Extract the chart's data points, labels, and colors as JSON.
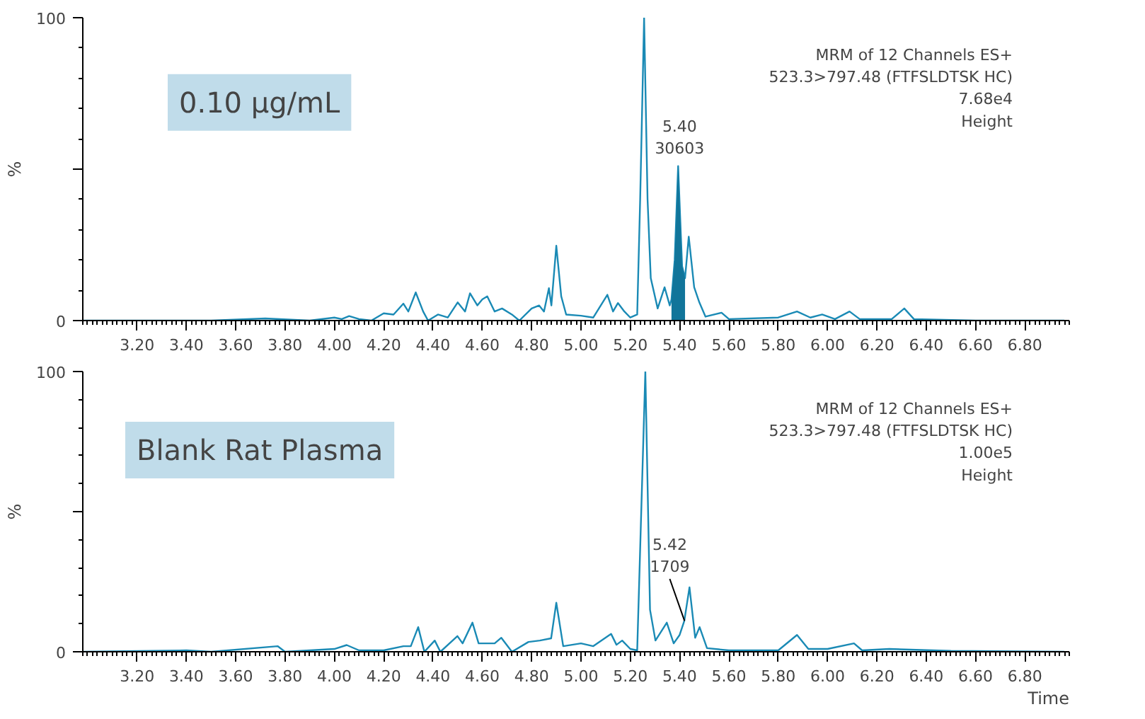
{
  "chart_data": [
    {
      "type": "line",
      "ylabel": "%",
      "xlim": [
        2.98,
        6.98
      ],
      "ylim": [
        0,
        100
      ],
      "xticks": [
        {
          "value": 3.2,
          "label": "3.20"
        },
        {
          "value": 3.4,
          "label": "3.40"
        },
        {
          "value": 3.6,
          "label": "3.60"
        },
        {
          "value": 3.8,
          "label": "3.80"
        },
        {
          "value": 4.0,
          "label": "4.00"
        },
        {
          "value": 4.2,
          "label": "4.20"
        },
        {
          "value": 4.4,
          "label": "4.40"
        },
        {
          "value": 4.6,
          "label": "4.60"
        },
        {
          "value": 4.8,
          "label": "4.80"
        },
        {
          "value": 5.0,
          "label": "5.00"
        },
        {
          "value": 5.2,
          "label": "5.20"
        },
        {
          "value": 5.4,
          "label": "5.40"
        },
        {
          "value": 5.6,
          "label": "5.60"
        },
        {
          "value": 5.8,
          "label": "5.80"
        },
        {
          "value": 6.0,
          "label": "6.00"
        },
        {
          "value": 6.2,
          "label": "6.20"
        },
        {
          "value": 6.4,
          "label": "6.40"
        },
        {
          "value": 6.6,
          "label": "6.60"
        },
        {
          "value": 6.8,
          "label": "6.80"
        }
      ],
      "yticks": [
        0,
        {
          "value": 50,
          "label": null
        },
        100
      ],
      "grid": false,
      "marker": "none",
      "line_style": "solid",
      "annotations": [
        "0.10 µg/mL",
        "MRM of 12 Channels ES+\n523.3>797.48 (FTFSLDTSK HC)\n7.68e4\nHeight",
        {
          "text": "5.40\n30603",
          "x": 5.4,
          "y": 51
        }
      ],
      "series": [
        {
          "color": "#1a8ab5",
          "x": [
            2.98,
            3.5,
            3.72,
            3.9,
            4.0,
            4.03,
            4.06,
            4.1,
            4.15,
            4.2,
            4.24,
            4.28,
            4.3,
            4.33,
            4.36,
            4.38,
            4.42,
            4.46,
            4.5,
            4.53,
            4.55,
            4.58,
            4.6,
            4.62,
            4.65,
            4.68,
            4.72,
            4.75,
            4.8,
            4.83,
            4.85,
            4.87,
            4.88,
            4.9,
            4.92,
            4.94,
            5.0,
            5.05,
            5.107,
            5.13,
            5.15,
            5.176,
            5.2,
            5.228,
            5.24,
            5.256,
            5.27,
            5.283,
            5.311,
            5.339,
            5.36,
            5.367,
            5.38,
            5.394,
            5.41,
            5.422,
            5.437,
            5.459,
            5.48,
            5.505,
            5.57,
            5.6,
            5.8,
            5.876,
            5.93,
            5.978,
            6.03,
            6.089,
            6.13,
            6.26,
            6.311,
            6.35,
            6.6,
            6.96
          ],
          "values": [
            0,
            0,
            0.7,
            0,
            1,
            0.5,
            1.5,
            0.5,
            0,
            2.4,
            2,
            5.6,
            3,
            9.3,
            3,
            0,
            2,
            1,
            6,
            3,
            9,
            5,
            7,
            8,
            3,
            4,
            2,
            0,
            4,
            5,
            3,
            10.7,
            5,
            24.7,
            8,
            2,
            1.6,
            1,
            8.5,
            3,
            5.8,
            3,
            1,
            2,
            40,
            100,
            40,
            14,
            4,
            11,
            5,
            7,
            20,
            51,
            18,
            14,
            27.7,
            11,
            6,
            1.3,
            2.6,
            0.5,
            1,
            3,
            1,
            2,
            0.5,
            3,
            0.5,
            0.5,
            4,
            0.5,
            0,
            0
          ]
        },
        {
          "type": "area",
          "color": "#11759a",
          "x": [
            5.367,
            5.38,
            5.394,
            5.41,
            5.422
          ],
          "values": [
            7,
            20,
            51,
            18,
            14
          ]
        }
      ]
    },
    {
      "type": "line",
      "xlabel": "Time",
      "ylabel": "%",
      "xlim": [
        2.98,
        6.98
      ],
      "ylim": [
        0,
        100
      ],
      "xticks": [
        {
          "value": 3.2,
          "label": "3.20"
        },
        {
          "value": 3.4,
          "label": "3.40"
        },
        {
          "value": 3.6,
          "label": "3.60"
        },
        {
          "value": 3.8,
          "label": "3.80"
        },
        {
          "value": 4.0,
          "label": "4.00"
        },
        {
          "value": 4.2,
          "label": "4.20"
        },
        {
          "value": 4.4,
          "label": "4.40"
        },
        {
          "value": 4.6,
          "label": "4.60"
        },
        {
          "value": 4.8,
          "label": "4.80"
        },
        {
          "value": 5.0,
          "label": "5.00"
        },
        {
          "value": 5.2,
          "label": "5.20"
        },
        {
          "value": 5.4,
          "label": "5.40"
        },
        {
          "value": 5.6,
          "label": "5.60"
        },
        {
          "value": 5.8,
          "label": "5.80"
        },
        {
          "value": 6.0,
          "label": "6.00"
        },
        {
          "value": 6.2,
          "label": "6.20"
        },
        {
          "value": 6.4,
          "label": "6.40"
        },
        {
          "value": 6.6,
          "label": "6.60"
        },
        {
          "value": 6.8,
          "label": "6.80"
        }
      ],
      "yticks": [
        0,
        {
          "value": 50,
          "label": null
        },
        100
      ],
      "grid": false,
      "marker": "none",
      "line_style": "solid",
      "annotations": [
        "Blank Rat Plasma",
        "MRM of 12 Channels ES+\n523.3>797.48 (FTFSLDTSK HC)\n1.00e5\nHeight",
        {
          "text": "5.42\n1709",
          "x": 5.42,
          "y": 11
        }
      ],
      "series": [
        {
          "color": "#1a8ab5",
          "x": [
            2.98,
            3.4,
            3.5,
            3.77,
            3.8,
            4.0,
            4.05,
            4.1,
            4.2,
            4.28,
            4.31,
            4.34,
            4.365,
            4.407,
            4.43,
            4.499,
            4.52,
            4.56,
            4.585,
            4.65,
            4.677,
            4.72,
            4.787,
            4.833,
            4.879,
            4.9,
            4.928,
            5.0,
            5.05,
            5.122,
            5.144,
            5.167,
            5.2,
            5.228,
            5.261,
            5.28,
            5.302,
            5.348,
            5.376,
            5.4,
            5.419,
            5.44,
            5.463,
            5.481,
            5.511,
            5.6,
            5.8,
            5.876,
            5.922,
            6.0,
            6.107,
            6.14,
            6.25,
            6.5,
            6.96
          ],
          "values": [
            0,
            0.5,
            0,
            2,
            0,
            1,
            2.4,
            0.5,
            0.5,
            2,
            2,
            8.8,
            0,
            4,
            0,
            5.6,
            3,
            10.4,
            3,
            3,
            5,
            0,
            3.5,
            4,
            4.8,
            17.5,
            2,
            3,
            2,
            6.4,
            2.5,
            4,
            1,
            0.5,
            100,
            15,
            4,
            10.4,
            3,
            6,
            11,
            23,
            5,
            8.8,
            1.3,
            0.5,
            0.5,
            6,
            1,
            1,
            3,
            0.5,
            1,
            0.3,
            0
          ]
        }
      ]
    }
  ]
}
